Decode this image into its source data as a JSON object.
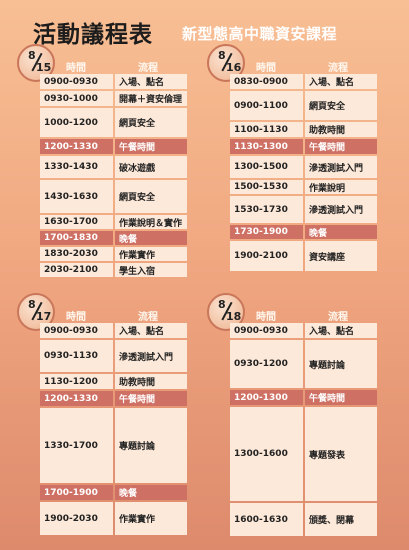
{
  "title": "活動議程表",
  "subtitle": "新型態高中職資安課程",
  "header": {
    "time": "時間",
    "flow": "流程"
  },
  "days": [
    {
      "month": "8",
      "day": "15",
      "rows": [
        {
          "time": "0900-0930",
          "event": "入場、點名",
          "h": 15
        },
        {
          "time": "0930-1000",
          "event": "開幕＋資安倫理",
          "h": 15
        },
        {
          "time": "1000-1200",
          "event": "網頁安全",
          "h": 29
        },
        {
          "time": "1200-1330",
          "event": "午餐時間",
          "h": 15,
          "meal": true
        },
        {
          "time": "1330-1430",
          "event": "破冰遊戲",
          "h": 22
        },
        {
          "time": "1430-1630",
          "event": "網頁安全",
          "h": 33
        },
        {
          "time": "1630-1700",
          "event": "作業說明＆實作",
          "h": 14
        },
        {
          "time": "1700-1830",
          "event": "晚餐",
          "h": 14,
          "meal": true
        },
        {
          "time": "1830-2030",
          "event": "作業實作",
          "h": 14
        },
        {
          "time": "2030-2100",
          "event": "學生入宿",
          "h": 14
        }
      ]
    },
    {
      "month": "8",
      "day": "16",
      "rows": [
        {
          "time": "0830-0900",
          "event": "入場、點名",
          "h": 15
        },
        {
          "time": "0900-1100",
          "event": "網頁安全",
          "h": 29
        },
        {
          "time": "1100-1130",
          "event": "助教時間",
          "h": 15
        },
        {
          "time": "1130-1300",
          "event": "午餐時間",
          "h": 15,
          "meal": true
        },
        {
          "time": "1300-1500",
          "event": "滲透測試入門",
          "h": 22
        },
        {
          "time": "1500-1530",
          "event": "作業說明",
          "h": 14
        },
        {
          "time": "1530-1730",
          "event": "滲透測試入門",
          "h": 27
        },
        {
          "time": "1730-1900",
          "event": "晚餐",
          "h": 14,
          "meal": true
        },
        {
          "time": "1900-2100",
          "event": "資安講座",
          "h": 30
        }
      ]
    },
    {
      "month": "8",
      "day": "17",
      "rows": [
        {
          "time": "0900-0930",
          "event": "入場、點名",
          "h": 15
        },
        {
          "time": "0930-1130",
          "event": "滲透測試入門",
          "h": 32
        },
        {
          "time": "1130-1200",
          "event": "助教時間",
          "h": 15
        },
        {
          "time": "1200-1330",
          "event": "午餐時間",
          "h": 15,
          "meal": true
        },
        {
          "time": "1330-1700",
          "event": "專題討論",
          "h": 75
        },
        {
          "time": "1700-1900",
          "event": "晚餐",
          "h": 15,
          "meal": true
        },
        {
          "time": "1900-2030",
          "event": "作業實作",
          "h": 33
        }
      ]
    },
    {
      "month": "8",
      "day": "18",
      "rows": [
        {
          "time": "0900-0930",
          "event": "入場、點名",
          "h": 15
        },
        {
          "time": "0930-1200",
          "event": "專題討論",
          "h": 48
        },
        {
          "time": "1200-1300",
          "event": "午餐時間",
          "h": 15,
          "meal": true
        },
        {
          "time": "1300-1600",
          "event": "專題發表",
          "h": 94
        },
        {
          "time": "1600-1630",
          "event": "頒獎、閉幕",
          "h": 33
        }
      ]
    }
  ]
}
